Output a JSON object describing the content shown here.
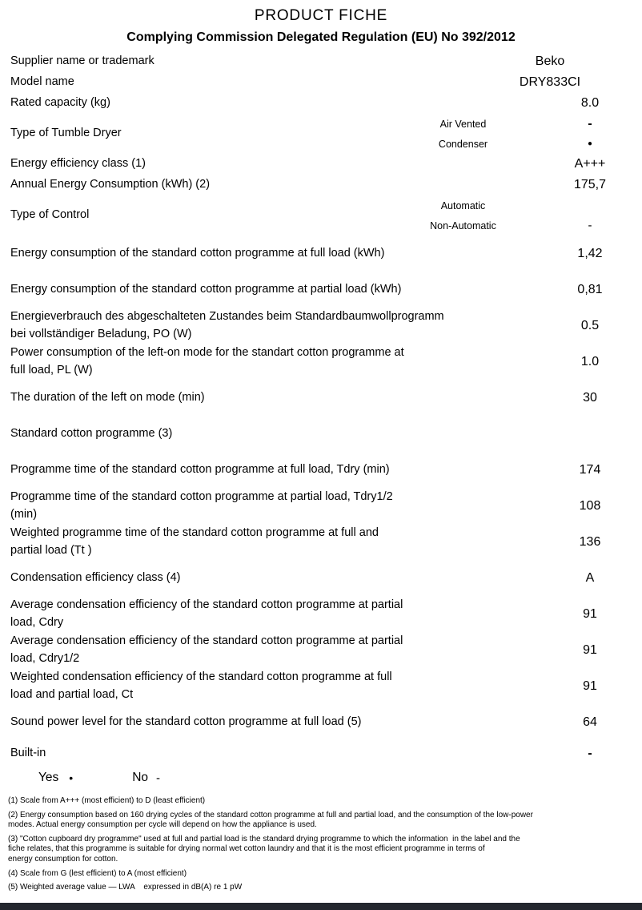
{
  "page": {
    "title": "PRODUCT FICHE",
    "subtitle": "Complying Commission Delegated Regulation (EU) No 392/2012"
  },
  "icons": {
    "bold-dash": "-",
    "dot": "●",
    "hyphen": "-",
    "bullet": "•",
    "none": ""
  },
  "rows": [
    {
      "label": "Supplier name or trademark",
      "value": "Beko"
    },
    {
      "label": "Model name",
      "value": "DRY833CI"
    },
    {
      "label": "Rated capacity (kg)",
      "value": "8.0"
    },
    {
      "label": "Type of Tumble Dryer",
      "sub": [
        {
          "label": "Air Vented",
          "marker": "bold-dash"
        },
        {
          "label": "Condenser",
          "marker": "dot"
        }
      ]
    },
    {
      "label": "Energy efficiency class (1)",
      "value": "A+++"
    },
    {
      "label": "Annual Energy Consumption (kWh) (2)",
      "value": "175,7"
    },
    {
      "label": "Type of Control",
      "sub": [
        {
          "label": "Automatic",
          "marker": "none"
        },
        {
          "label": "Non-Automatic",
          "marker": "hyphen"
        }
      ]
    },
    {
      "label": "Energy consumption of the standard cotton programme at full load (kWh)",
      "value": "1,42"
    },
    {
      "label": "Energy consumption of the standard cotton programme at partial load (kWh)",
      "value": "0,81"
    },
    {
      "label": "Energieverbrauch des abgeschalteten Zustandes beim Standardbaumwollprogramm\nbei vollständiger Beladung, PO (W)",
      "value": "0.5"
    },
    {
      "label": "Power consumption of the left-on mode for the standart cotton programme at\nfull load, PL (W)",
      "value": "1.0"
    },
    {
      "label": "The duration of the left on mode (min)",
      "value": "30"
    },
    {
      "label": "Standard cotton programme (3)",
      "value": ""
    },
    {
      "label": "Programme time of the standard cotton programme at full load, Tdry (min)",
      "value": "174"
    },
    {
      "label": "Programme time of the standard cotton programme at partial load, Tdry1/2\n(min)",
      "value": "108"
    },
    {
      "label": "Weighted programme time of the standard cotton programme at full and\npartial load (Tt )",
      "value": "136"
    },
    {
      "label": "Condensation efficiency class (4)",
      "value": "A"
    },
    {
      "label": "Average condensation efficiency of the standard cotton programme at partial\nload, Cdry",
      "value": "91"
    },
    {
      "label": "Average condensation efficiency of the standard cotton programme at partial\nload, Cdry1/2",
      "value": "91"
    },
    {
      "label": "Weighted condensation efficiency of the standard cotton programme at full\nload and partial load, Ct",
      "value": "91"
    },
    {
      "label": "Sound power level for the standard cotton programme at full load (5)",
      "value": "64"
    },
    {
      "label": "Built-in",
      "marker": "bold-dash"
    }
  ],
  "builtin_legend": {
    "yes_label": "Yes",
    "yes_marker": "bullet",
    "no_label": "No",
    "no_marker": "hyphen"
  },
  "footnotes": [
    "(1) Scale from A+++ (most efficient) to D (least efficient)",
    "(2) Energy consumption based on 160 drying cycles of the standard cotton programme at full and partial load, and the consumption of the low-power\nmodes. Actual energy consumption per cycle will depend on how the appliance is used.",
    "(3) \"Cotton cupboard dry programme\" used at full and partial load is the standard drying programme to which the information  in the label and the\nfiche relates, that this programme is suitable for drying normal wet cotton laundry and that it is the most efficient programme in terms of\nenergy consumption for cotton.",
    "(4) Scale from G (lest efficient) to A (most efficient)",
    "(5) Weighted average value — LWA    expressed in dB(A) re 1 pW"
  ],
  "colors": {
    "background": "#ffffff",
    "text": "#000000",
    "bottom_bar": "#23272e"
  }
}
